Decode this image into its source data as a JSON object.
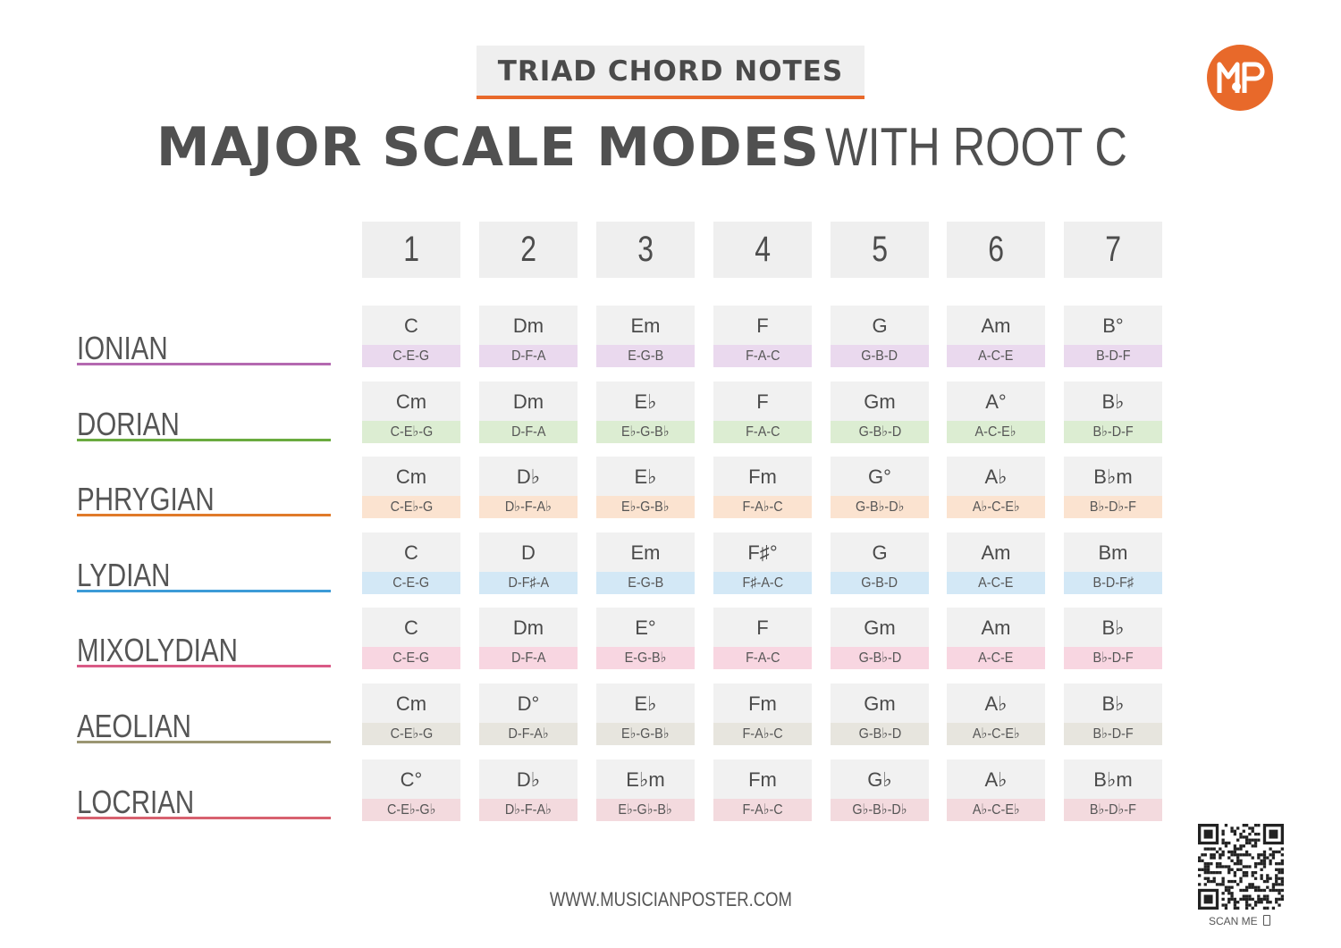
{
  "header": {
    "kicker": "TRIAD CHORD NOTES",
    "title_bold": "MAJOR SCALE MODES",
    "title_light": "WITH ROOT C"
  },
  "logo": {
    "name": "musicianposter-logo",
    "text": "MP",
    "color": "#e8692a"
  },
  "columns": [
    "1",
    "2",
    "3",
    "4",
    "5",
    "6",
    "7"
  ],
  "modes": [
    {
      "name": "IONIAN",
      "line_color": "#b469b0",
      "note_bg": "#ead9ee",
      "chords": [
        "C",
        "Dm",
        "Em",
        "F",
        "G",
        "Am",
        "B°"
      ],
      "notes": [
        "C-E-G",
        "D-F-A",
        "E-G-B",
        "F-A-C",
        "G-B-D",
        "A-C-E",
        "B-D-F"
      ]
    },
    {
      "name": "DORIAN",
      "line_color": "#6aab3f",
      "note_bg": "#dcedd2",
      "chords": [
        "Cm",
        "Dm",
        "E♭",
        "F",
        "Gm",
        "A°",
        "B♭"
      ],
      "notes": [
        "C-E♭-G",
        "D-F-A",
        "E♭-G-B♭",
        "F-A-C",
        "G-B♭-D",
        "A-C-E♭",
        "B♭-D-F"
      ]
    },
    {
      "name": "PHRYGIAN",
      "line_color": "#e07a2a",
      "note_bg": "#fbe3d0",
      "chords": [
        "Cm",
        "D♭",
        "E♭",
        "Fm",
        "G°",
        "A♭",
        "B♭m"
      ],
      "notes": [
        "C-E♭-G",
        "D♭-F-A♭",
        "E♭-G-B♭",
        "F-A♭-C",
        "G-B♭-D♭",
        "A♭-C-E♭",
        "B♭-D♭-F"
      ]
    },
    {
      "name": "LYDIAN",
      "line_color": "#3c9bd7",
      "note_bg": "#d3e8f6",
      "chords": [
        "C",
        "D",
        "Em",
        "F♯°",
        "G",
        "Am",
        "Bm"
      ],
      "notes": [
        "C-E-G",
        "D-F♯-A",
        "E-G-B",
        "F♯-A-C",
        "G-B-D",
        "A-C-E",
        "B-D-F♯"
      ]
    },
    {
      "name": "MIXOLYDIAN",
      "line_color": "#d95a86",
      "note_bg": "#f8d6e1",
      "chords": [
        "C",
        "Dm",
        "E°",
        "F",
        "Gm",
        "Am",
        "B♭"
      ],
      "notes": [
        "C-E-G",
        "D-F-A",
        "E-G-B♭",
        "F-A-C",
        "G-B♭-D",
        "A-C-E",
        "B♭-D-F"
      ]
    },
    {
      "name": "AEOLIAN",
      "line_color": "#9b9673",
      "note_bg": "#e7e5de",
      "chords": [
        "Cm",
        "D°",
        "E♭",
        "Fm",
        "Gm",
        "A♭",
        "B♭"
      ],
      "notes": [
        "C-E♭-G",
        "D-F-A♭",
        "E♭-G-B♭",
        "F-A♭-C",
        "G-B♭-D",
        "A♭-C-E♭",
        "B♭-D-F"
      ]
    },
    {
      "name": "LOCRIAN",
      "line_color": "#d8616f",
      "note_bg": "#f3dade",
      "chords": [
        "C°",
        "D♭",
        "E♭m",
        "Fm",
        "G♭",
        "A♭",
        "B♭m"
      ],
      "notes": [
        "C-E♭-G♭",
        "D♭-F-A♭",
        "E♭-G♭-B♭",
        "F-A♭-C",
        "G♭-B♭-D♭",
        "A♭-C-E♭",
        "B♭-D♭-F"
      ]
    }
  ],
  "footer": {
    "url": "WWW.MUSICIANPOSTER.COM",
    "scan_label": "SCAN ME"
  }
}
